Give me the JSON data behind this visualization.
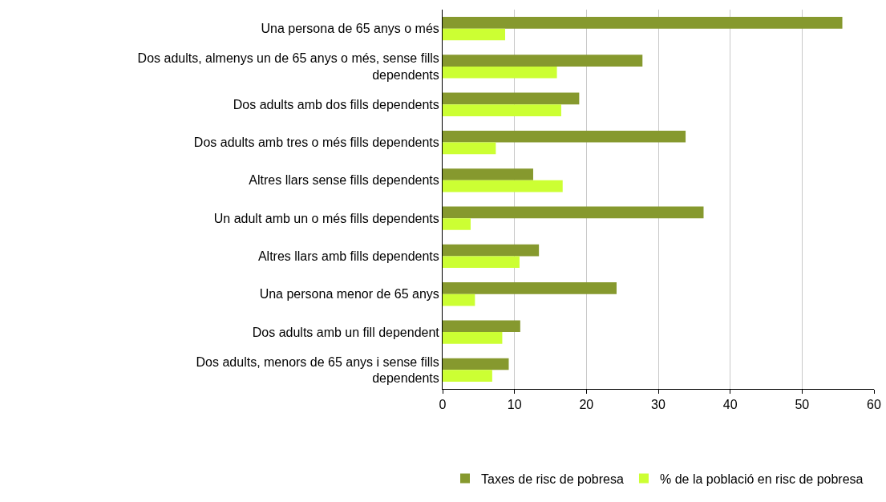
{
  "chart_data": {
    "type": "bar",
    "orientation": "horizontal",
    "categories": [
      "Una persona de 65 anys o més",
      "Dos adults, almenys un de 65 anys o més, sense fills dependents",
      "Dos adults amb dos fills dependents",
      "Dos adults amb tres o més fills dependents",
      "Altres llars sense fills dependents",
      "Un adult amb un o més fills dependents",
      "Altres llars amb fills dependents",
      "Una persona menor de 65 anys",
      "Dos adults amb un fill dependent",
      "Dos adults, menors de 65 anys i sense fills dependents"
    ],
    "series": [
      {
        "name": "Taxes de risc de pobresa",
        "color": "#86992e",
        "values": [
          55.6,
          27.8,
          19.0,
          33.8,
          12.6,
          36.3,
          13.4,
          24.2,
          10.8,
          9.2
        ]
      },
      {
        "name": "% de la població en risc de pobresa",
        "color": "#ccff33",
        "values": [
          8.7,
          15.9,
          16.5,
          7.4,
          16.7,
          3.9,
          10.7,
          4.5,
          8.3,
          6.9
        ]
      }
    ],
    "xlim": [
      0,
      60
    ],
    "xticks": [
      0,
      10,
      20,
      30,
      40,
      50,
      60
    ],
    "grid": "x",
    "legend": "bottom"
  }
}
